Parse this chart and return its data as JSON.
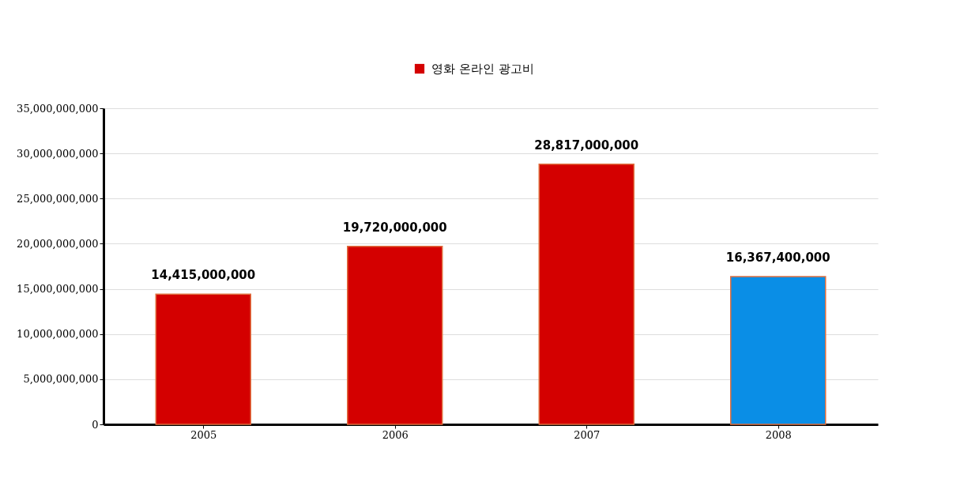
{
  "chart_data": {
    "type": "bar",
    "categories": [
      "2005",
      "2006",
      "2007",
      "2008"
    ],
    "series": [
      {
        "name": "영화 온라인 광고비",
        "color": "#d40000",
        "colors": [
          "#d40000",
          "#d40000",
          "#d40000",
          "#0a8ee6"
        ],
        "values": [
          14415000000,
          19720000000,
          28817000000,
          16367400000
        ],
        "value_labels": [
          "14,415,000,000",
          "19,720,000,000",
          "28,817,000,000",
          "16,367,400,000"
        ]
      }
    ],
    "ylim": [
      0,
      35000000000
    ],
    "yticks": [
      {
        "value": 0,
        "label": "0"
      },
      {
        "value": 5000000000,
        "label": "5,000,000,000"
      },
      {
        "value": 10000000000,
        "label": "10,000,000,000"
      },
      {
        "value": 15000000000,
        "label": "15,000,000,000"
      },
      {
        "value": 20000000000,
        "label": "20,000,000,000"
      },
      {
        "value": 25000000000,
        "label": "25,000,000,000"
      },
      {
        "value": 30000000000,
        "label": "30,000,000,000"
      },
      {
        "value": 35000000000,
        "label": "35,000,000,000"
      }
    ],
    "grid": "y",
    "legend": "top"
  }
}
